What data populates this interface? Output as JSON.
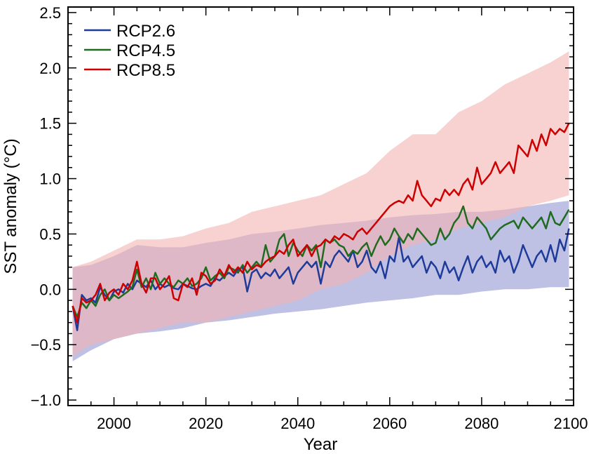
{
  "chart_data": {
    "type": "line",
    "title": "",
    "xlabel": "Year",
    "ylabel": "SST anomaly (°C)",
    "xlim": [
      1990,
      2100
    ],
    "ylim": [
      -1.05,
      2.55
    ],
    "xticks": [
      2000,
      2020,
      2040,
      2060,
      2080,
      2100
    ],
    "yticks": [
      -1.0,
      -0.5,
      0.0,
      0.5,
      1.0,
      1.5,
      2.0,
      2.5
    ],
    "ytick_labels": [
      "−1.0",
      "−0.5",
      "0.0",
      "0.5",
      "1.0",
      "1.5",
      "2.0",
      "2.5"
    ],
    "grid": false,
    "legend_position": "top-left",
    "bands": [
      {
        "series": "RCP2.6",
        "color": "#aeb2dd",
        "x": [
          1991,
          1995,
          2000,
          2005,
          2010,
          2015,
          2020,
          2025,
          2030,
          2035,
          2040,
          2045,
          2050,
          2055,
          2060,
          2065,
          2070,
          2075,
          2080,
          2085,
          2090,
          2095,
          2099
        ],
        "upper": [
          0.2,
          0.22,
          0.3,
          0.4,
          0.38,
          0.38,
          0.42,
          0.45,
          0.5,
          0.52,
          0.55,
          0.58,
          0.6,
          0.62,
          0.65,
          0.67,
          0.68,
          0.7,
          0.7,
          0.72,
          0.75,
          0.78,
          0.8
        ],
        "lower": [
          -0.65,
          -0.55,
          -0.45,
          -0.4,
          -0.38,
          -0.35,
          -0.3,
          -0.28,
          -0.25,
          -0.22,
          -0.2,
          -0.18,
          -0.15,
          -0.12,
          -0.1,
          -0.08,
          -0.05,
          -0.05,
          -0.02,
          0.0,
          0.0,
          0.02,
          0.02
        ]
      },
      {
        "series": "RCP8.5",
        "color": "#f4b3b3",
        "x": [
          1991,
          1995,
          2000,
          2005,
          2010,
          2015,
          2020,
          2025,
          2030,
          2035,
          2040,
          2045,
          2050,
          2055,
          2060,
          2065,
          2070,
          2075,
          2080,
          2085,
          2090,
          2095,
          2099
        ],
        "upper": [
          0.2,
          0.25,
          0.35,
          0.45,
          0.45,
          0.48,
          0.55,
          0.6,
          0.7,
          0.75,
          0.8,
          0.85,
          0.95,
          1.05,
          1.25,
          1.4,
          1.4,
          1.6,
          1.7,
          1.85,
          1.95,
          2.05,
          2.15
        ],
        "lower": [
          -0.6,
          -0.5,
          -0.45,
          -0.4,
          -0.35,
          -0.3,
          -0.3,
          -0.25,
          -0.2,
          -0.15,
          -0.1,
          0.0,
          0.05,
          0.15,
          0.3,
          0.4,
          0.45,
          0.55,
          0.6,
          0.65,
          0.75,
          0.8,
          0.85
        ]
      }
    ],
    "x": [
      1991,
      1992,
      1993,
      1994,
      1995,
      1996,
      1997,
      1998,
      1999,
      2000,
      2001,
      2002,
      2003,
      2004,
      2005,
      2006,
      2007,
      2008,
      2009,
      2010,
      2011,
      2012,
      2013,
      2014,
      2015,
      2016,
      2017,
      2018,
      2019,
      2020,
      2021,
      2022,
      2023,
      2024,
      2025,
      2026,
      2027,
      2028,
      2029,
      2030,
      2031,
      2032,
      2033,
      2034,
      2035,
      2036,
      2037,
      2038,
      2039,
      2040,
      2041,
      2042,
      2043,
      2044,
      2045,
      2046,
      2047,
      2048,
      2049,
      2050,
      2051,
      2052,
      2053,
      2054,
      2055,
      2056,
      2057,
      2058,
      2059,
      2060,
      2061,
      2062,
      2063,
      2064,
      2065,
      2066,
      2067,
      2068,
      2069,
      2070,
      2071,
      2072,
      2073,
      2074,
      2075,
      2076,
      2077,
      2078,
      2079,
      2080,
      2081,
      2082,
      2083,
      2084,
      2085,
      2086,
      2087,
      2088,
      2089,
      2090,
      2091,
      2092,
      2093,
      2094,
      2095,
      2096,
      2097,
      2098,
      2099
    ],
    "series": [
      {
        "name": "RCP2.6",
        "color": "#1f3b99",
        "values": [
          -0.15,
          -0.37,
          -0.05,
          -0.1,
          -0.08,
          -0.12,
          0.02,
          -0.05,
          -0.1,
          -0.02,
          0.0,
          -0.03,
          0.05,
          0.0,
          0.08,
          0.05,
          0.02,
          0.08,
          0.0,
          0.05,
          0.02,
          0.04,
          0.01,
          0.0,
          0.05,
          0.03,
          0.01,
          0.0,
          0.03,
          0.05,
          0.03,
          0.1,
          0.08,
          0.12,
          0.15,
          0.12,
          0.18,
          0.2,
          -0.02,
          0.15,
          0.18,
          0.1,
          0.15,
          0.12,
          0.18,
          0.1,
          0.15,
          0.2,
          0.05,
          0.15,
          0.2,
          0.25,
          0.2,
          0.25,
          0.05,
          0.25,
          0.2,
          0.3,
          0.35,
          0.3,
          0.25,
          0.35,
          0.2,
          0.25,
          0.35,
          0.2,
          0.15,
          0.25,
          0.1,
          0.3,
          0.25,
          0.47,
          0.25,
          0.3,
          0.2,
          0.25,
          0.3,
          0.15,
          0.25,
          0.2,
          0.1,
          0.25,
          0.15,
          0.2,
          0.08,
          0.2,
          0.3,
          0.15,
          0.25,
          0.3,
          0.2,
          0.25,
          0.15,
          0.35,
          0.25,
          0.3,
          0.15,
          0.25,
          0.4,
          0.3,
          0.2,
          0.3,
          0.35,
          0.25,
          0.4,
          0.25,
          0.45,
          0.35,
          0.55
        ]
      },
      {
        "name": "RCP4.5",
        "color": "#1f6b1f",
        "values": [
          -0.15,
          -0.25,
          -0.12,
          -0.17,
          -0.1,
          -0.15,
          -0.05,
          0.0,
          -0.1,
          -0.05,
          -0.08,
          -0.05,
          -0.02,
          0.02,
          0.18,
          0.02,
          0.1,
          0.0,
          0.15,
          0.05,
          0.1,
          0.05,
          0.02,
          0.08,
          0.05,
          0.1,
          0.03,
          0.05,
          0.1,
          0.2,
          0.08,
          0.12,
          0.15,
          0.1,
          0.2,
          0.18,
          0.15,
          0.22,
          0.15,
          0.2,
          0.25,
          0.2,
          0.4,
          0.25,
          0.3,
          0.45,
          0.5,
          0.3,
          0.42,
          0.35,
          0.3,
          0.4,
          0.35,
          0.4,
          0.2,
          0.45,
          0.42,
          0.45,
          0.4,
          0.38,
          0.3,
          0.35,
          0.32,
          0.38,
          0.42,
          0.3,
          0.4,
          0.48,
          0.4,
          0.45,
          0.55,
          0.48,
          0.42,
          0.5,
          0.45,
          0.55,
          0.5,
          0.45,
          0.4,
          0.42,
          0.55,
          0.45,
          0.5,
          0.6,
          0.65,
          0.75,
          0.6,
          0.55,
          0.65,
          0.6,
          0.55,
          0.45,
          0.5,
          0.55,
          0.58,
          0.6,
          0.62,
          0.55,
          0.65,
          0.6,
          0.55,
          0.6,
          0.65,
          0.55,
          0.7,
          0.6,
          0.58,
          0.65,
          0.72
        ]
      },
      {
        "name": "RCP8.5",
        "color": "#cc0000",
        "values": [
          -0.15,
          -0.3,
          -0.08,
          -0.12,
          -0.1,
          -0.05,
          0.05,
          -0.1,
          -0.03,
          0.0,
          -0.05,
          0.05,
          0.0,
          0.08,
          0.25,
          0.05,
          -0.03,
          0.1,
          0.1,
          0.0,
          0.05,
          0.12,
          -0.08,
          -0.1,
          0.05,
          0.02,
          0.1,
          -0.05,
          0.15,
          0.12,
          0.05,
          0.08,
          0.18,
          0.12,
          0.22,
          0.15,
          0.2,
          0.15,
          0.25,
          0.18,
          0.22,
          0.2,
          0.25,
          0.28,
          0.3,
          0.35,
          0.32,
          0.4,
          0.45,
          0.3,
          0.35,
          0.4,
          0.3,
          0.38,
          0.4,
          0.45,
          0.42,
          0.48,
          0.45,
          0.5,
          0.48,
          0.45,
          0.52,
          0.55,
          0.5,
          0.55,
          0.6,
          0.65,
          0.7,
          0.75,
          0.78,
          0.8,
          0.78,
          0.85,
          0.8,
          0.98,
          0.85,
          0.8,
          0.75,
          0.82,
          0.8,
          0.9,
          0.85,
          0.9,
          0.85,
          0.95,
          1.0,
          0.9,
          1.1,
          0.95,
          1.0,
          1.05,
          1.15,
          1.05,
          1.1,
          1.15,
          1.05,
          1.3,
          1.25,
          1.2,
          1.35,
          1.25,
          1.4,
          1.3,
          1.45,
          1.4,
          1.45,
          1.42,
          1.5
        ]
      }
    ]
  }
}
